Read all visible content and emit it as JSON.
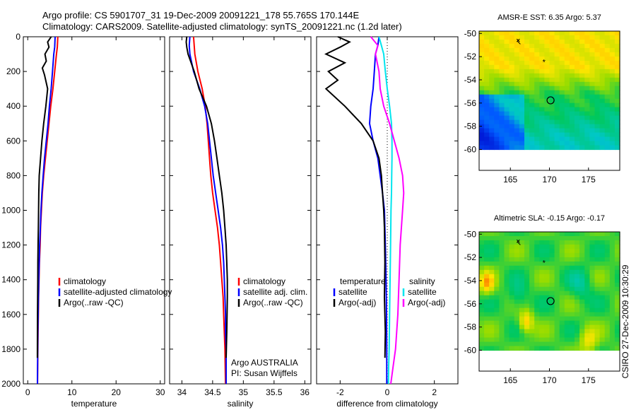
{
  "header": {
    "line1": "Argo profile: CS 5901707_31 19-Dec-2009 20091221_178 55.765S 170.144E",
    "line2": "Climatology: CARS2009. Satellite-adjusted climatology: synTS_20091221.nc (1.2d later)"
  },
  "footer_vertical": "CSIRO 27-Dec-2009 10:30:29",
  "colors": {
    "climatology": "#ff0000",
    "satellite": "#0000ff",
    "argo": "#000000",
    "salinity_satellite": "#00e5ee",
    "salinity_argo": "#ff00ff"
  },
  "chart_data": [
    {
      "type": "line",
      "xlabel": "temperature",
      "ylabel": "",
      "xlim": [
        -1,
        31
      ],
      "ylim": [
        2000,
        0
      ],
      "xticks": [
        0,
        10,
        20,
        30
      ],
      "yticks": [
        0,
        200,
        400,
        600,
        800,
        1000,
        1200,
        1400,
        1600,
        1800,
        2000
      ],
      "legend_location": "lower-left",
      "legend": [
        "climatology",
        "satellite-adjusted climatology",
        "Argo(..raw -QC)"
      ],
      "series": [
        {
          "name": "climatology",
          "color": "#ff0000",
          "x": [
            6.8,
            6.7,
            6.5,
            6.1,
            5.7,
            5.2,
            4.8,
            4.4,
            4.0,
            3.6,
            3.3,
            3.1,
            2.9,
            2.8,
            2.65,
            2.55,
            2.45,
            2.4,
            2.35,
            2.3,
            2.25,
            2.22
          ],
          "y": [
            0,
            60,
            100,
            200,
            300,
            400,
            500,
            600,
            700,
            800,
            900,
            1000,
            1100,
            1200,
            1300,
            1400,
            1500,
            1600,
            1700,
            1800,
            1900,
            2000
          ]
        },
        {
          "name": "satellite-adjusted climatology",
          "color": "#0000ff",
          "x": [
            6.2,
            6.1,
            5.9,
            5.6,
            5.3,
            4.9,
            4.6,
            4.2,
            3.8,
            3.5,
            3.2,
            3.0,
            2.85,
            2.7,
            2.6,
            2.5,
            2.42,
            2.36,
            2.3,
            2.27,
            2.23,
            2.2
          ],
          "y": [
            0,
            60,
            100,
            200,
            300,
            400,
            500,
            600,
            700,
            800,
            900,
            1000,
            1100,
            1200,
            1300,
            1400,
            1500,
            1600,
            1700,
            1800,
            1900,
            2000
          ]
        },
        {
          "name": "Argo(..raw -QC)",
          "color": "#000000",
          "x": [
            5.3,
            4.5,
            4.8,
            3.9,
            4.2,
            3.3,
            3.8,
            4.5,
            4.1,
            3.6,
            3.2,
            2.9,
            2.6,
            2.5,
            2.45,
            2.4,
            2.35,
            2.3,
            2.28,
            2.25,
            2.22,
            2.2,
            2.18
          ],
          "y": [
            0,
            30,
            60,
            100,
            140,
            180,
            220,
            300,
            400,
            500,
            600,
            700,
            800,
            900,
            1000,
            1100,
            1200,
            1300,
            1400,
            1500,
            1600,
            1700,
            1850
          ]
        }
      ]
    },
    {
      "type": "line",
      "xlabel": "salinity",
      "ylabel": "",
      "xlim": [
        33.8,
        36.1
      ],
      "ylim": [
        2000,
        0
      ],
      "xticks": [
        34,
        34.5,
        35,
        35.5,
        36
      ],
      "legend_location": "lower-right",
      "legend": [
        "climatology",
        "satellite adj. clim.",
        "Argo(..raw -QC)"
      ],
      "annotation": [
        "Argo AUSTRALIA",
        "PI: Susan Wijffels"
      ],
      "series": [
        {
          "name": "climatology",
          "color": "#ff0000",
          "x": [
            34.19,
            34.2,
            34.21,
            34.26,
            34.33,
            34.38,
            34.41,
            34.43,
            34.45,
            34.47,
            34.5,
            34.54,
            34.58,
            34.61,
            34.63,
            34.65,
            34.67,
            34.68,
            34.69,
            34.7,
            34.71
          ],
          "y": [
            0,
            50,
            100,
            200,
            300,
            400,
            500,
            600,
            700,
            800,
            900,
            1000,
            1100,
            1200,
            1300,
            1400,
            1500,
            1600,
            1700,
            1800,
            2000
          ]
        },
        {
          "name": "satellite adj. clim.",
          "color": "#0000ff",
          "x": [
            34.13,
            34.12,
            34.13,
            34.19,
            34.29,
            34.37,
            34.42,
            34.45,
            34.48,
            34.51,
            34.55,
            34.59,
            34.63,
            34.66,
            34.68,
            34.69,
            34.7,
            34.71,
            34.71,
            34.72,
            34.72
          ],
          "y": [
            0,
            50,
            100,
            200,
            300,
            400,
            500,
            600,
            700,
            800,
            900,
            1000,
            1100,
            1200,
            1300,
            1400,
            1500,
            1600,
            1700,
            1800,
            2000
          ]
        },
        {
          "name": "Argo(..raw -QC)",
          "color": "#000000",
          "x": [
            34.08,
            34.07,
            34.08,
            34.1,
            34.2,
            34.28,
            34.4,
            34.48,
            34.53,
            34.57,
            34.61,
            34.65,
            34.68,
            34.7,
            34.72,
            34.73,
            34.74,
            34.74,
            34.73,
            34.72
          ],
          "y": [
            0,
            30,
            60,
            100,
            200,
            300,
            400,
            500,
            600,
            700,
            800,
            900,
            1000,
            1100,
            1200,
            1300,
            1400,
            1500,
            1700,
            1850
          ]
        }
      ]
    },
    {
      "type": "line",
      "xlabel": "difference from climatology",
      "ylabel": "",
      "xlim": [
        -3,
        3
      ],
      "ylim": [
        2000,
        0
      ],
      "xticks": [
        -2,
        0,
        2
      ],
      "legend_location": "lower",
      "legend_groups": [
        {
          "title": "temperature",
          "entries": [
            "satellite",
            "Argo(-adj)"
          ]
        },
        {
          "title": "salinity",
          "entries": [
            "satellite",
            "Argo(-adj)"
          ]
        }
      ],
      "series": [
        {
          "name": "temperature satellite",
          "color": "#0000ff",
          "x": [
            -0.35,
            -0.4,
            -0.5,
            -0.55,
            -0.6,
            -0.7,
            -0.75,
            -0.6,
            -0.4,
            -0.3,
            -0.2,
            -0.12,
            -0.08,
            -0.05,
            -0.03,
            -0.02,
            -0.02,
            -0.02
          ],
          "y": [
            0,
            50,
            100,
            200,
            300,
            400,
            500,
            600,
            700,
            800,
            900,
            1000,
            1200,
            1400,
            1600,
            1800,
            1900,
            2000
          ]
        },
        {
          "name": "temperature Argo(-adj)",
          "color": "#000000",
          "x": [
            -2.1,
            -1.6,
            -2.0,
            -2.6,
            -1.8,
            -2.5,
            -2.1,
            -2.6,
            -1.8,
            -1.1,
            -0.6,
            -0.35,
            -0.25,
            -0.2,
            -0.15,
            -0.12,
            -0.1,
            -0.12,
            -0.08,
            -0.1
          ],
          "y": [
            0,
            30,
            60,
            100,
            150,
            200,
            250,
            300,
            400,
            500,
            600,
            700,
            800,
            900,
            1000,
            1100,
            1300,
            1500,
            1700,
            1850
          ]
        },
        {
          "name": "salinity satellite",
          "color": "#00e5ee",
          "x": [
            -0.35,
            -0.25,
            -0.15,
            -0.08,
            0.0,
            0.1,
            0.18,
            0.2,
            0.2,
            0.19,
            0.18,
            0.16,
            0.14,
            0.12,
            0.1,
            0.08,
            0.06,
            0.05
          ],
          "y": [
            0,
            50,
            100,
            200,
            300,
            400,
            500,
            600,
            700,
            800,
            900,
            1000,
            1200,
            1400,
            1600,
            1800,
            1900,
            2000
          ]
        },
        {
          "name": "salinity Argo(-adj)",
          "color": "#ff00ff",
          "x": [
            -0.7,
            -0.4,
            -0.5,
            -0.35,
            -0.3,
            -0.15,
            0.1,
            0.3,
            0.5,
            0.65,
            0.7,
            0.65,
            0.55,
            0.5,
            0.45,
            0.35,
            0.25,
            0.15
          ],
          "y": [
            0,
            50,
            100,
            200,
            300,
            400,
            500,
            600,
            700,
            800,
            900,
            1000,
            1200,
            1400,
            1600,
            1800,
            1900,
            2000
          ]
        }
      ]
    },
    {
      "type": "heatmap",
      "title": "AMSR-E SST: 6.35 Argo: 5.37",
      "xlim": [
        161,
        179
      ],
      "ylim": [
        -61.8,
        -49.8
      ],
      "xticks": [
        165,
        170,
        175
      ],
      "yticks": [
        -50,
        -52,
        -54,
        -56,
        -58,
        -60
      ],
      "grid": false,
      "argo_location": {
        "lon": 170.144,
        "lat": -55.765
      }
    },
    {
      "type": "heatmap",
      "title": "Altimetric SLA: -0.15 Argo: -0.17",
      "xlim": [
        161,
        179
      ],
      "ylim": [
        -61.8,
        -49.8
      ],
      "xticks": [
        165,
        170,
        175
      ],
      "yticks": [
        -50,
        -52,
        -54,
        -56,
        -58,
        -60
      ],
      "grid": false,
      "argo_location": {
        "lon": 170.144,
        "lat": -55.765
      }
    }
  ]
}
